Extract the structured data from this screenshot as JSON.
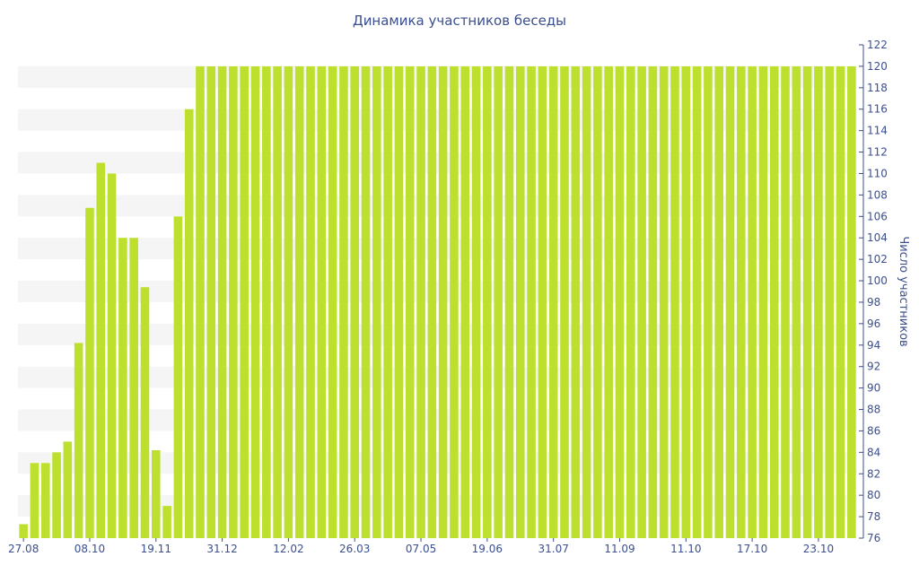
{
  "chart_data": {
    "type": "bar",
    "title": "Динамика участников беседы",
    "xlabel": "",
    "ylabel": "Число участников",
    "ylim": [
      76,
      122
    ],
    "y_ticks": [
      76,
      78,
      80,
      82,
      84,
      86,
      88,
      90,
      92,
      94,
      96,
      98,
      100,
      102,
      104,
      106,
      108,
      110,
      112,
      114,
      116,
      118,
      120,
      122
    ],
    "x_tick_labels": [
      {
        "label": "27.08",
        "index": 0
      },
      {
        "label": "08.10",
        "index": 6
      },
      {
        "label": "19.11",
        "index": 12
      },
      {
        "label": "31.12",
        "index": 18
      },
      {
        "label": "12.02",
        "index": 24
      },
      {
        "label": "26.03",
        "index": 30
      },
      {
        "label": "07.05",
        "index": 36
      },
      {
        "label": "19.06",
        "index": 42
      },
      {
        "label": "31.07",
        "index": 48
      },
      {
        "label": "11.09",
        "index": 54
      },
      {
        "label": "11.10",
        "index": 60
      },
      {
        "label": "17.10",
        "index": 66
      },
      {
        "label": "23.10",
        "index": 72
      }
    ],
    "values": [
      77.3,
      83,
      83,
      84,
      85,
      94.2,
      106.8,
      111,
      110,
      104,
      104,
      99.4,
      84.2,
      79,
      106,
      116,
      120,
      120,
      120,
      120,
      120,
      120,
      120,
      120,
      120,
      120,
      120,
      120,
      120,
      120,
      120,
      120,
      120,
      120,
      120,
      120,
      120,
      120,
      120,
      120,
      120,
      120,
      120,
      120,
      120,
      120,
      120,
      120,
      120,
      120,
      120,
      120,
      120,
      120,
      120,
      120,
      120,
      120,
      120,
      120,
      120,
      120,
      120,
      120,
      120,
      120,
      120,
      120,
      120,
      120,
      120,
      120,
      120,
      120,
      120,
      120
    ],
    "grid": "alternating-bands",
    "y_axis_position": "right",
    "colors": {
      "bar": "#bde02f",
      "text": "#3b4f8f",
      "band": "#f5f5f5"
    }
  }
}
